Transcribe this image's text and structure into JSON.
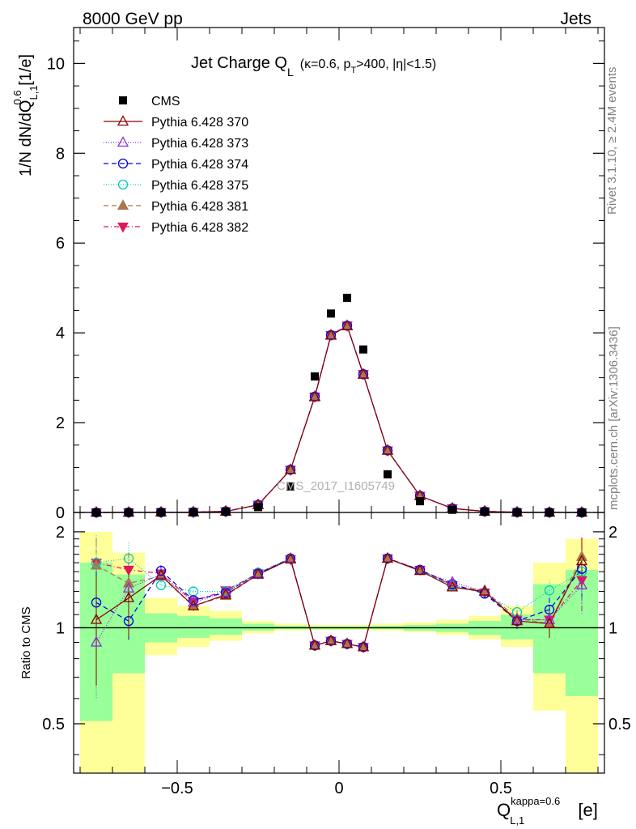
{
  "header": {
    "left": "8000 GeV pp",
    "right": "Jets"
  },
  "side_labels": {
    "rivet": "Rivet 3.1.10, ≥ 2.4M events",
    "mcplots": "mcplots.cern.ch [arXiv:1306.3436]"
  },
  "watermark": "CMS_2017_I1605749",
  "chart_data": [
    {
      "type": "scatter",
      "panel": "main",
      "title_parts": {
        "main": "Jet Charge Q",
        "main_sub": "L",
        "detail_prefix": "(κ=0.6, p",
        "detail_sub": "T",
        "detail_suffix": ">400, |η|<1.5)"
      },
      "ylabel_parts": {
        "a": "1/N dN/dQ",
        "sup": "0.6",
        "sub": "L,1",
        "b": " [1/e]"
      },
      "xlim": [
        -0.82,
        0.82
      ],
      "ylim": [
        0,
        10.8
      ],
      "yticks": [
        0,
        2,
        4,
        6,
        8,
        10
      ],
      "yticklabels": [
        "0",
        "2",
        "4",
        "6",
        "8",
        "10"
      ],
      "legend_position": "top-left",
      "x": [
        -0.75,
        -0.65,
        -0.55,
        -0.45,
        -0.35,
        -0.25,
        -0.15,
        -0.075,
        -0.025,
        0.025,
        0.075,
        0.15,
        0.25,
        0.35,
        0.45,
        0.55,
        0.65,
        0.75
      ],
      "series": [
        {
          "name": "CMS",
          "marker": "square",
          "color": "#000000",
          "dash": "none",
          "values": [
            0.0003,
            0.001,
            0.003,
            0.007,
            0.019,
            0.12,
            0.58,
            3.03,
            4.43,
            4.78,
            3.63,
            0.85,
            0.25,
            0.06,
            0.018,
            0.005,
            0.001,
            0.0003
          ]
        },
        {
          "name": "Pythia 6.428 370",
          "marker": "triangle-open",
          "color": "#8b0000",
          "dash": "none",
          "values": [
            0.0003,
            0.001,
            0.004,
            0.008,
            0.024,
            0.17,
            0.95,
            2.57,
            3.94,
            4.15,
            3.07,
            1.38,
            0.37,
            0.09,
            0.024,
            0.005,
            0.001,
            0.0004
          ]
        },
        {
          "name": "Pythia 6.428 373",
          "marker": "triangle-open",
          "color": "#8a2be2",
          "dash": "1,2",
          "values": [
            0.0003,
            0.001,
            0.004,
            0.008,
            0.024,
            0.17,
            0.95,
            2.58,
            3.95,
            4.16,
            3.08,
            1.38,
            0.37,
            0.09,
            0.024,
            0.005,
            0.001,
            0.0004
          ]
        },
        {
          "name": "Pythia 6.428 374",
          "marker": "circle-open",
          "color": "#0000dd",
          "dash": "6,4",
          "values": [
            0.0003,
            0.001,
            0.004,
            0.008,
            0.024,
            0.17,
            0.95,
            2.58,
            3.95,
            4.16,
            3.08,
            1.38,
            0.37,
            0.09,
            0.024,
            0.005,
            0.001,
            0.0004
          ]
        },
        {
          "name": "Pythia 6.428 375",
          "marker": "circle-open",
          "color": "#00ccbb",
          "dash": "1,2",
          "values": [
            0.0003,
            0.001,
            0.004,
            0.008,
            0.024,
            0.17,
            0.95,
            2.58,
            3.95,
            4.16,
            3.08,
            1.38,
            0.37,
            0.09,
            0.024,
            0.005,
            0.001,
            0.0004
          ]
        },
        {
          "name": "Pythia 6.428 381",
          "marker": "triangle-filled",
          "color": "#a8784a",
          "dash": "6,4",
          "values": [
            0.0003,
            0.001,
            0.004,
            0.008,
            0.024,
            0.17,
            0.95,
            2.58,
            3.95,
            4.16,
            3.08,
            1.38,
            0.37,
            0.09,
            0.024,
            0.005,
            0.001,
            0.0004
          ]
        },
        {
          "name": "Pythia 6.428 382",
          "marker": "triangle-down-filled",
          "color": "#e0185a",
          "dash": "6,3,1,3",
          "values": [
            0.0003,
            0.001,
            0.004,
            0.008,
            0.024,
            0.17,
            0.95,
            2.58,
            3.95,
            4.16,
            3.08,
            1.38,
            0.37,
            0.09,
            0.024,
            0.005,
            0.001,
            0.0004
          ]
        }
      ]
    },
    {
      "type": "line",
      "panel": "ratio",
      "ylabel": "Ratio to CMS",
      "xlabel_parts": {
        "main": "Q",
        "sup": "kappa=0.6",
        "sub": "L,1",
        "unit": " [e]"
      },
      "xlim": [
        -0.82,
        0.82
      ],
      "ylim": [
        0.35,
        2.3
      ],
      "ylog": true,
      "xticks": [
        -0.5,
        0,
        0.5
      ],
      "xticklabels": [
        "−0.5",
        "0",
        "0.5"
      ],
      "yticks": [
        0.5,
        1,
        2
      ],
      "yticklabels": [
        "0.5",
        "1",
        "2"
      ],
      "reference_line": 1,
      "bands": [
        {
          "xlo": -0.8,
          "xhi": -0.7,
          "green": [
            0.51,
            1.6
          ],
          "yellow": [
            0.35,
            2.0
          ]
        },
        {
          "xlo": -0.7,
          "xhi": -0.6,
          "green": [
            0.72,
            1.47
          ],
          "yellow": [
            0.35,
            1.72
          ]
        },
        {
          "xlo": -0.6,
          "xhi": -0.5,
          "green": [
            0.9,
            1.11
          ],
          "yellow": [
            0.82,
            1.24
          ]
        },
        {
          "xlo": -0.5,
          "xhi": -0.4,
          "green": [
            0.93,
            1.09
          ],
          "yellow": [
            0.87,
            1.17
          ]
        },
        {
          "xlo": -0.4,
          "xhi": -0.3,
          "green": [
            0.95,
            1.07
          ],
          "yellow": [
            0.91,
            1.13
          ]
        },
        {
          "xlo": -0.3,
          "xhi": -0.2,
          "green": [
            0.98,
            1.03
          ],
          "yellow": [
            0.96,
            1.05
          ]
        },
        {
          "xlo": -0.2,
          "xhi": -0.1,
          "green": [
            0.99,
            1.015
          ],
          "yellow": [
            0.98,
            1.03
          ]
        },
        {
          "xlo": -0.1,
          "xhi": 0.1,
          "green": [
            0.99,
            1.01
          ],
          "yellow": [
            0.985,
            1.02
          ]
        },
        {
          "xlo": 0.1,
          "xhi": 0.2,
          "green": [
            0.99,
            1.015
          ],
          "yellow": [
            0.98,
            1.03
          ]
        },
        {
          "xlo": 0.2,
          "xhi": 0.3,
          "green": [
            0.98,
            1.02
          ],
          "yellow": [
            0.97,
            1.04
          ]
        },
        {
          "xlo": 0.3,
          "xhi": 0.4,
          "green": [
            0.97,
            1.03
          ],
          "yellow": [
            0.95,
            1.06
          ]
        },
        {
          "xlo": 0.4,
          "xhi": 0.5,
          "green": [
            0.95,
            1.05
          ],
          "yellow": [
            0.92,
            1.09
          ]
        },
        {
          "xlo": 0.5,
          "xhi": 0.6,
          "green": [
            0.92,
            1.1
          ],
          "yellow": [
            0.87,
            1.17
          ]
        },
        {
          "xlo": 0.6,
          "xhi": 0.7,
          "green": [
            0.72,
            1.37
          ],
          "yellow": [
            0.55,
            1.6
          ]
        },
        {
          "xlo": 0.7,
          "xhi": 0.8,
          "green": [
            0.61,
            1.52
          ],
          "yellow": [
            0.35,
            1.9
          ]
        }
      ],
      "x": [
        -0.75,
        -0.65,
        -0.55,
        -0.45,
        -0.35,
        -0.25,
        -0.15,
        -0.075,
        -0.025,
        0.025,
        0.075,
        0.15,
        0.25,
        0.35,
        0.45,
        0.55,
        0.65,
        0.75
      ],
      "series": [
        {
          "name": "Pythia 6.428 370",
          "values": [
            1.06,
            1.24,
            1.46,
            1.17,
            1.27,
            1.47,
            1.64,
            0.88,
            0.91,
            0.89,
            0.87,
            1.65,
            1.51,
            1.34,
            1.3,
            1.05,
            1.03,
            1.62
          ],
          "err": [
            0.4,
            0.3,
            0.06,
            0.04,
            0.03,
            0.02,
            0.02,
            0.01,
            0.01,
            0.01,
            0.01,
            0.02,
            0.02,
            0.03,
            0.04,
            0.06,
            0.1,
            0.3
          ]
        },
        {
          "name": "Pythia 6.428 373",
          "values": [
            0.9,
            1.33,
            1.47,
            1.2,
            1.29,
            1.48,
            1.65,
            0.88,
            0.91,
            0.89,
            0.87,
            1.65,
            1.51,
            1.39,
            1.3,
            1.06,
            1.06,
            1.36
          ],
          "err": [
            0.3,
            0.2,
            0.06,
            0.04,
            0.03,
            0.02,
            0.02,
            0.01,
            0.01,
            0.01,
            0.01,
            0.02,
            0.02,
            0.03,
            0.04,
            0.06,
            0.1,
            0.25
          ]
        },
        {
          "name": "Pythia 6.428 374",
          "values": [
            1.2,
            1.05,
            1.51,
            1.22,
            1.29,
            1.48,
            1.65,
            0.88,
            0.91,
            0.89,
            0.87,
            1.65,
            1.52,
            1.37,
            1.28,
            1.05,
            1.14,
            1.53
          ],
          "err": [
            0.3,
            0.15,
            0.06,
            0.04,
            0.03,
            0.02,
            0.02,
            0.01,
            0.01,
            0.01,
            0.01,
            0.02,
            0.02,
            0.03,
            0.04,
            0.06,
            0.1,
            0.3
          ]
        },
        {
          "name": "Pythia 6.428 375",
          "values": [
            1.6,
            1.65,
            1.36,
            1.3,
            1.3,
            1.49,
            1.65,
            0.88,
            0.91,
            0.89,
            0.87,
            1.65,
            1.52,
            1.36,
            1.28,
            1.12,
            1.31,
            1.5
          ],
          "err": [
            0.35,
            0.2,
            0.06,
            0.04,
            0.03,
            0.02,
            0.02,
            0.01,
            0.01,
            0.01,
            0.01,
            0.02,
            0.02,
            0.03,
            0.04,
            0.06,
            0.1,
            0.3
          ]
        },
        {
          "name": "Pythia 6.428 381",
          "values": [
            1.57,
            1.38,
            1.45,
            1.17,
            1.26,
            1.47,
            1.64,
            0.88,
            0.91,
            0.89,
            0.87,
            1.65,
            1.51,
            1.35,
            1.31,
            1.07,
            1.03,
            1.67
          ],
          "err": [
            0.3,
            0.2,
            0.06,
            0.04,
            0.03,
            0.02,
            0.02,
            0.01,
            0.01,
            0.01,
            0.01,
            0.02,
            0.02,
            0.03,
            0.04,
            0.06,
            0.1,
            0.25
          ]
        },
        {
          "name": "Pythia 6.428 382",
          "values": [
            1.6,
            1.52,
            1.48,
            1.21,
            1.31,
            1.48,
            1.64,
            0.88,
            0.91,
            0.89,
            0.87,
            1.65,
            1.52,
            1.36,
            1.29,
            1.06,
            1.06,
            1.41
          ],
          "err": [
            0.3,
            0.2,
            0.06,
            0.04,
            0.03,
            0.02,
            0.02,
            0.01,
            0.01,
            0.01,
            0.01,
            0.02,
            0.02,
            0.03,
            0.04,
            0.06,
            0.1,
            0.3
          ]
        }
      ]
    }
  ]
}
